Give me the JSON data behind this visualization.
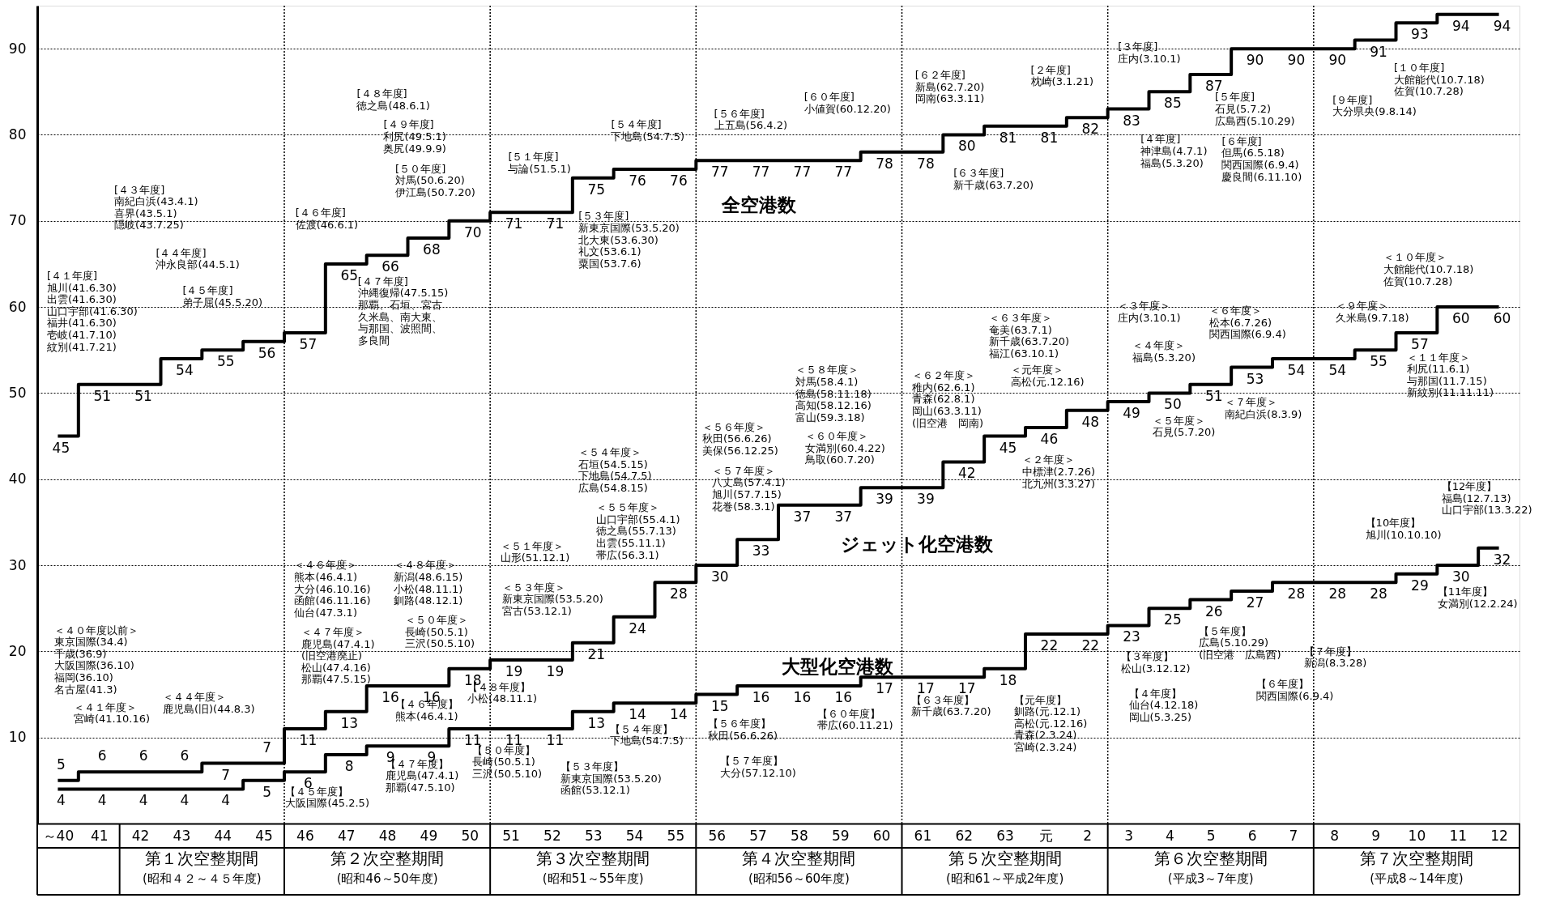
{
  "chart_data": {
    "type": "step",
    "categories": [
      "～40",
      "41",
      "42",
      "43",
      "44",
      "45",
      "46",
      "47",
      "48",
      "49",
      "50",
      "51",
      "52",
      "53",
      "54",
      "55",
      "56",
      "57",
      "58",
      "59",
      "60",
      "61",
      "62",
      "63",
      "元",
      "2",
      "3",
      "4",
      "5",
      "6",
      "7",
      "8",
      "9",
      "10",
      "11",
      "12"
    ],
    "series": [
      {
        "name": "全空港数",
        "color": "#000000",
        "values": [
          45,
          51,
          51,
          54,
          55,
          56,
          57,
          65,
          66,
          68,
          70,
          71,
          71,
          75,
          76,
          76,
          77,
          77,
          77,
          77,
          78,
          78,
          80,
          81,
          81,
          82,
          83,
          85,
          87,
          90,
          90,
          90,
          91,
          93,
          94,
          94
        ]
      },
      {
        "name": "ジェット化空港数",
        "color": "#000000",
        "values": [
          5,
          6,
          6,
          6,
          7,
          7,
          11,
          13,
          16,
          16,
          18,
          19,
          19,
          21,
          24,
          28,
          30,
          33,
          37,
          37,
          39,
          39,
          42,
          45,
          46,
          48,
          49,
          50,
          51,
          53,
          54,
          54,
          55,
          57,
          60,
          60
        ]
      },
      {
        "name": "大型化空港数",
        "color": "#000000",
        "values": [
          4,
          4,
          4,
          4,
          4,
          5,
          6,
          8,
          9,
          9,
          11,
          11,
          11,
          13,
          14,
          14,
          15,
          16,
          16,
          16,
          17,
          17,
          17,
          18,
          22,
          22,
          23,
          25,
          26,
          27,
          28,
          28,
          28,
          29,
          30,
          32
        ]
      }
    ],
    "ylim": [
      0,
      95
    ],
    "yticks": [
      10,
      20,
      30,
      40,
      50,
      60,
      70,
      80,
      90
    ],
    "grid": "y",
    "legend": false,
    "data_labels": true,
    "line_style": "solid",
    "marker": "none",
    "annotations": [
      "第１次空整期間",
      "(昭和４２～４５年度)",
      "第２次空整期間",
      "(昭和46～50年度)",
      "第３次空整期間",
      "(昭和51～55年度)",
      "第４次空整期間",
      "(昭和56～60年度)",
      "第５次空整期間",
      "(昭和61～平成2年度)",
      "第６次空整期間",
      "(平成3～7年度)",
      "第７次空整期間",
      "(平成8～14年度)",
      "[４１年度]旭川(41.6.30)出雲(41.6.30)山口宇部(41.6.30)福井(41.6.30)壱岐(41.7.10)紋別(41.7.21)",
      "[４３年度]南紀白浜(43.4.1)喜界(43.5.1)隠岐(43.7.25)",
      "[４４年度]沖永良部(44.5.1)",
      "[４５年度]弟子屈(45.5.20)",
      "[４６年度]佐渡(46.6.1)",
      "[４８年度]徳之島(48.6.1)",
      "[４９年度]利尻(49.5.1)奥尻(49.9.9)",
      "[５０年度]対馬(50.6.20)伊江島(50.7.20)",
      "[４７年度]沖縄復帰(47.5.15)那覇、石垣、宮古久米島、南大東、与那国、波照間、多良間",
      "[５１年度]与論(51.5.1)",
      "[５３年度]新東京国際(53.5.20)北大東(53.6.30)礼文(53.6.1)粟国(53.7.6)",
      "[５４年度]下地島(54.7.5)",
      "[５６年度]上五島(56.4.2)",
      "[６０年度]小値賀(60.12.20)",
      "[６２年度]新島(62.7.20)岡南(63.3.11)",
      "[６３年度]新千歳(63.7.20)",
      "[２年度]枕崎(3.1.21)",
      "[３年度]庄内(3.10.1)",
      "[４年度]神津島(4.7.1)福島(5.3.20)",
      "[５年度]石見(5.7.2)広島西(5.10.29)",
      "[６年度]但馬(6.5.18)関西国際(6.9.4)慶良間(6.11.10)",
      "[９年度]大分県央(9.8.14)",
      "[１０年度]大館能代(10.7.18)佐賀(10.7.28)",
      "＜４０年度以前＞東京国際(34.4)千歳(36.9)大阪国際(36.10)福岡(36.10)名古屋(41.3)",
      "＜４１年度＞宮崎(41.10.16)",
      "＜４４年度＞鹿児島(旧)(44.8.3)",
      "＜４６年度＞熊本(46.4.1)大分(46.10.16)函館(46.11.16)仙台(47.3.1)",
      "＜４７年度＞鹿児島(47.4.1)(旧空港廃止)松山(47.4.16)那覇(47.5.15)",
      "＜４８年度＞新潟(48.6.15)小松(48.11.1)釧路(48.12.1)",
      "＜５０年度＞長崎(50.5.1)三沢(50.5.10)",
      "＜５１年度＞山形(51.12.1)",
      "＜５３年度＞新東京国際(53.5.20)宮古(53.12.1)",
      "＜５４年度＞石垣(54.5.15)下地島(54.7.5)広島(54.8.15)",
      "＜５５年度＞山口宇部(55.4.1)徳之島(55.7.13)出雲(55.11.1)帯広(56.3.1)",
      "＜５６年度＞秋田(56.6.26)美保(56.12.25)",
      "＜５７年度＞八丈島(57.4.1)旭川(57.7.15)花巻(58.3.1)",
      "＜５８年度＞対馬(58.4.1)徳島(58.11.18)高知(58.12.16)富山(59.3.18)",
      "＜６０年度＞女満別(60.4.22)鳥取(60.7.20)",
      "＜６２年度＞稚内(62.6.1)青森(62.8.1)岡山(63.3.11)(旧空港　岡南)",
      "＜６３年度＞奄美(63.7.1)新千歳(63.7.20)福江(63.10.1)",
      "＜元年度＞高松(元.12.16)",
      "＜２年度＞中標津(2.7.26)北九州(3.3.27)",
      "＜３年度＞庄内(3.10.1)",
      "＜４年度＞福島(5.3.20)",
      "＜５年度＞石見(5.7.20)",
      "＜６年度＞松本(6.7.26)関西国際(6.9.4)",
      "＜７年度＞南紀白浜(8.3.9)",
      "＜９年度＞久米島(9.7.18)",
      "＜１０年度＞大館能代(10.7.18)佐賀(10.7.28)",
      "＜１１年度＞利尻(11.6.1)与那国(11.7.15)新紋別(11.11.11)",
      "【４５年度】大阪国際(45.2.5)",
      "【４６年度】熊本(46.4.1)",
      "【４７年度】鹿児島(47.4.1)那覇(47.5.10)",
      "【４８年度】小松(48.11.1)",
      "【５０年度】長崎(50.5.1)三沢(50.5.10)",
      "【５３年度】新東京国際(53.5.20)函館(53.12.1)",
      "【５４年度】下地島(54.7.5)",
      "【５６年度】秋田(56.6.26)",
      "【５７年度】大分(57.12.10)",
      "【６０年度】帯広(60.11.21)",
      "【６３年度】新千歳(63.7.20)",
      "【元年度】釧路(元.12.1)高松(元.12.16)青森(2.3.24)宮崎(2.3.24)",
      "【３年度】松山(3.12.12)",
      "【４年度】仙台(4.12.18)岡山(5.3.25)",
      "【５年度】広島(5.10.29)(旧空港　広島西)",
      "【６年度】関西国際(6.9.4)",
      "【７年度】新潟(8.3.28)",
      "【10年度】旭川(10.10.10)",
      "【11年度】女満別(12.2.24)",
      "【12年度】福島(12.7.13)山口宇部(13.3.22)"
    ]
  }
}
